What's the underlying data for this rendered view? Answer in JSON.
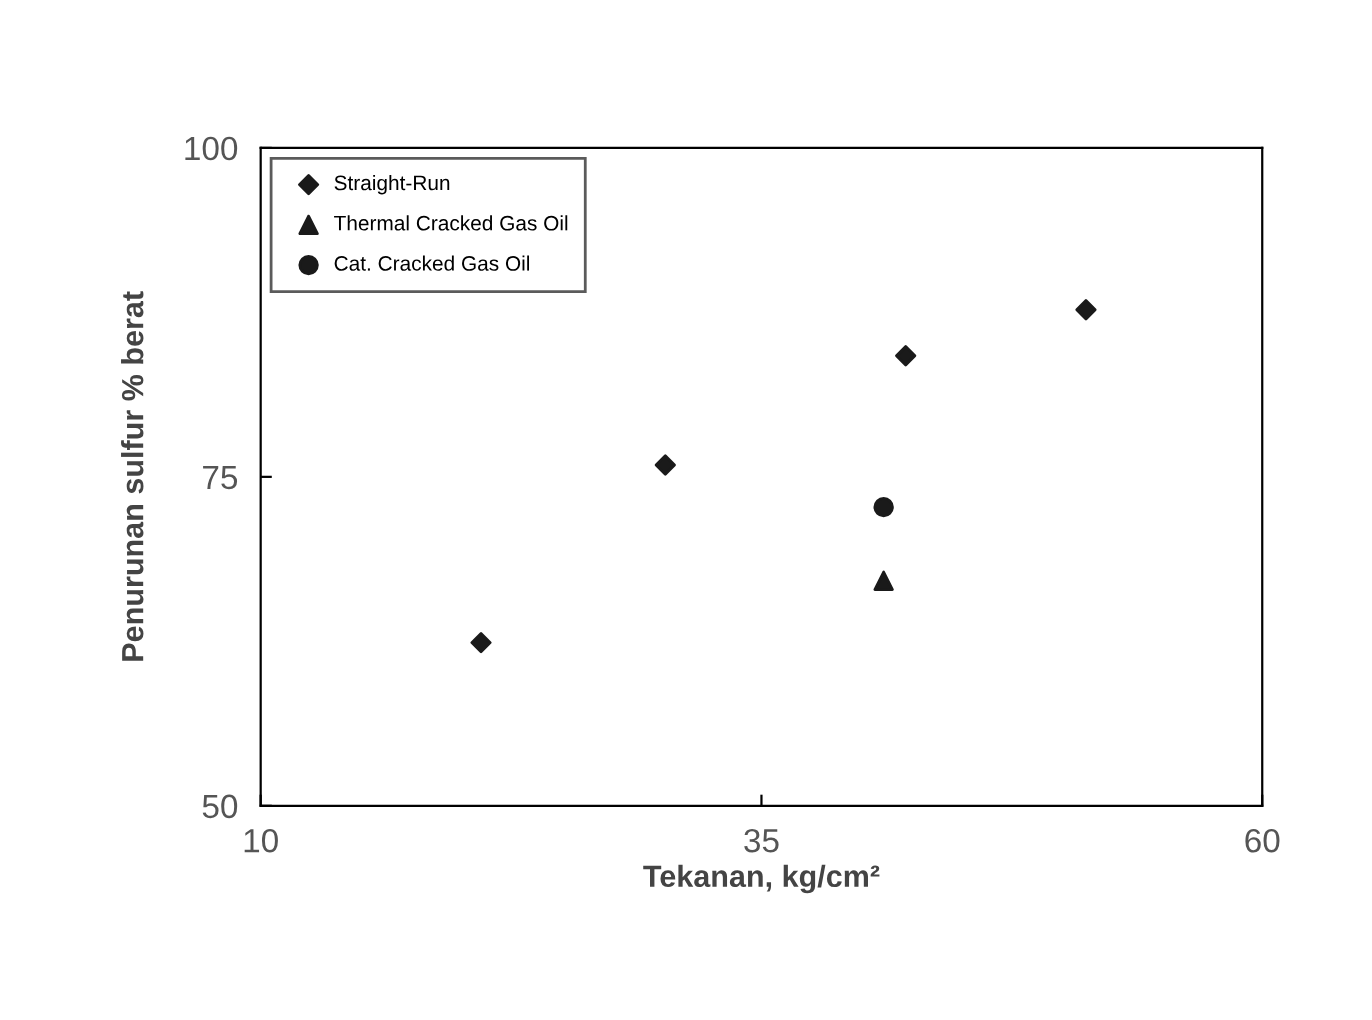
{
  "chart_data": {
    "type": "scatter",
    "xlabel": "Tekanan, kg/cm²",
    "ylabel": "Penurunan sulfur % berat",
    "xlim": [
      10,
      60
    ],
    "xticks": [
      10,
      35,
      60
    ],
    "ylim": [
      50,
      100
    ],
    "yticks": [
      50,
      75,
      100
    ],
    "grid": false,
    "legend": "top left",
    "series": [
      {
        "name": "Straight-Run",
        "color": "#1a1a1a",
        "marker": "diamond",
        "x": [
          21,
          30.2,
          42.2,
          51.2
        ],
        "values": [
          62.4,
          75.9,
          84.2,
          87.7
        ]
      },
      {
        "name": "Thermal Cracked Gas Oil",
        "color": "#1a1a1a",
        "marker": "triangle",
        "x": [
          41.1
        ],
        "values": [
          67.1
        ]
      },
      {
        "name": "Cat. Cracked Gas Oil",
        "color": "#1a1a1a",
        "marker": "circle",
        "x": [
          41.1
        ],
        "values": [
          72.7
        ]
      }
    ]
  }
}
